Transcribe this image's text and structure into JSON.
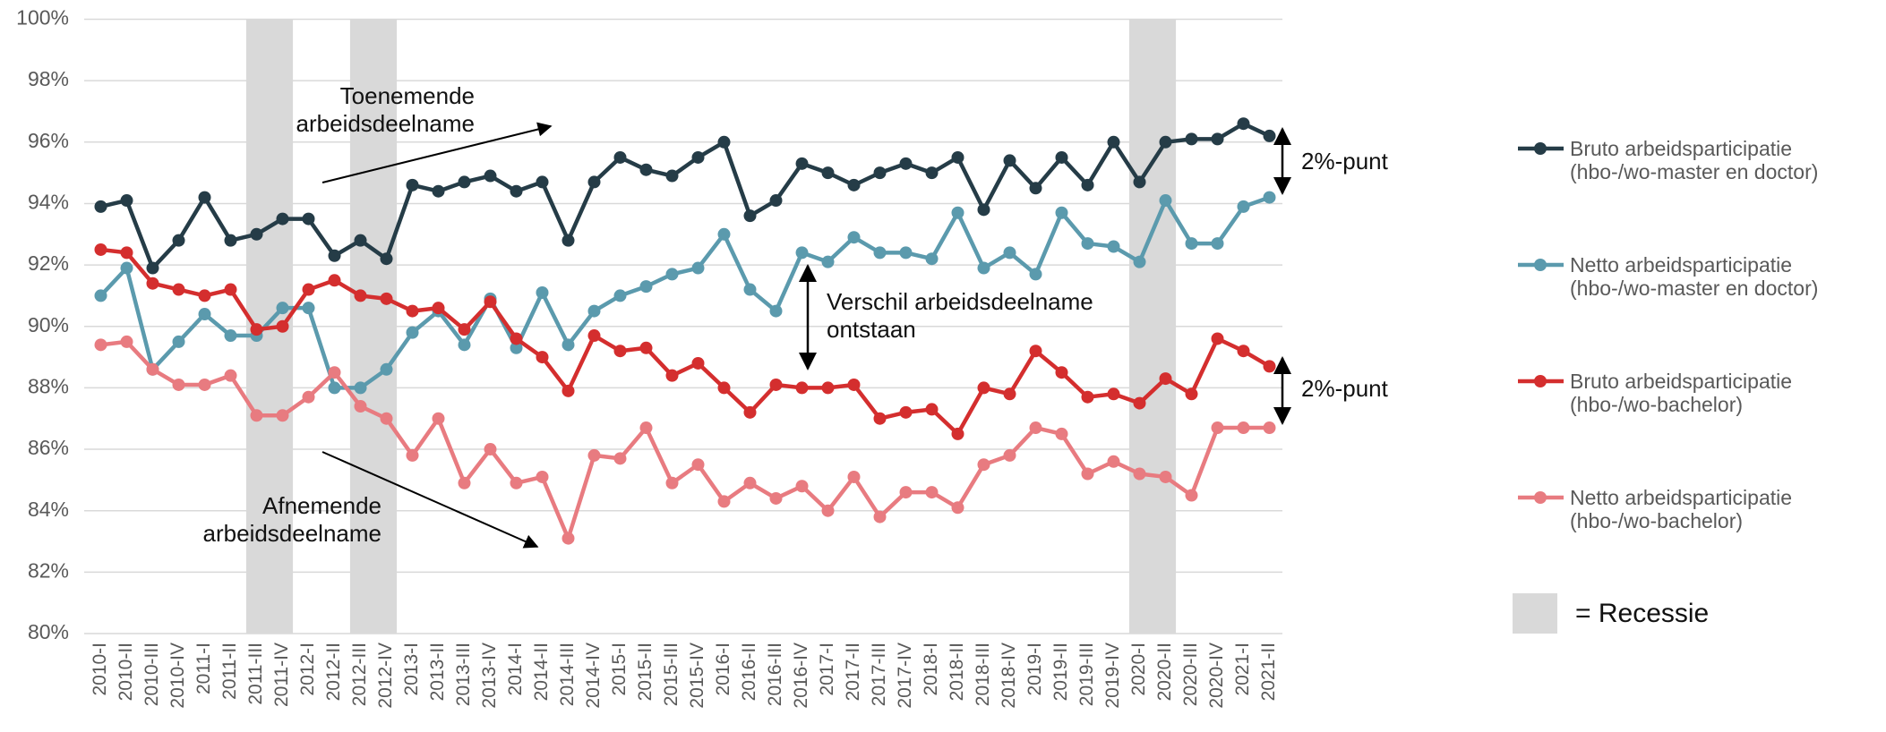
{
  "chart_data": {
    "type": "line",
    "categories": [
      "2010-I",
      "2010-II",
      "2010-III",
      "2010-IV",
      "2011-I",
      "2011-II",
      "2011-III",
      "2011-IV",
      "2012-I",
      "2012-II",
      "2012-III",
      "2012-IV",
      "2013-I",
      "2013-II",
      "2013-III",
      "2013-IV",
      "2014-I",
      "2014-II",
      "2014-III",
      "2014-IV",
      "2015-I",
      "2015-II",
      "2015-III",
      "2015-IV",
      "2016-I",
      "2016-II",
      "2016-III",
      "2016-IV",
      "2017-I",
      "2017-II",
      "2017-III",
      "2017-IV",
      "2018-I",
      "2018-II",
      "2018-III",
      "2018-IV",
      "2019-I",
      "2019-II",
      "2019-III",
      "2019-IV",
      "2020-I",
      "2020-II",
      "2020-III",
      "2020-IV",
      "2021-I",
      "2021-II"
    ],
    "series": [
      {
        "name": "Bruto arbeidsparticipatie\n(hbo-/wo-master en doctor)",
        "color": "#253c47",
        "values": [
          93.9,
          94.1,
          91.9,
          92.8,
          94.2,
          92.8,
          93.0,
          93.5,
          93.5,
          92.3,
          92.8,
          92.2,
          94.6,
          94.4,
          94.7,
          94.9,
          94.4,
          94.7,
          92.8,
          94.7,
          95.5,
          95.1,
          94.9,
          95.5,
          96.0,
          93.6,
          94.1,
          95.3,
          95.0,
          94.6,
          95.0,
          95.3,
          95.0,
          95.5,
          93.8,
          95.4,
          94.5,
          95.5,
          94.6,
          96.0,
          94.7,
          96.0,
          96.1,
          96.1,
          96.6,
          96.2
        ]
      },
      {
        "name": "Netto arbeidsparticipatie\n(hbo-/wo-master en doctor)",
        "color": "#5b9aad",
        "values": [
          91.0,
          91.9,
          88.6,
          89.5,
          90.4,
          89.7,
          89.7,
          90.6,
          90.6,
          88.0,
          88.0,
          88.6,
          89.8,
          90.5,
          89.4,
          90.9,
          89.3,
          91.1,
          89.4,
          90.5,
          91.0,
          91.3,
          91.7,
          91.9,
          93.0,
          91.2,
          90.5,
          92.4,
          92.1,
          92.9,
          92.4,
          92.4,
          92.2,
          93.7,
          91.9,
          92.4,
          91.7,
          93.7,
          92.7,
          92.6,
          92.1,
          94.1,
          92.7,
          92.7,
          93.9,
          94.2
        ]
      },
      {
        "name": "Bruto arbeidsparticipatie\n(hbo-/wo-bachelor)",
        "color": "#d42e2e",
        "values": [
          92.5,
          92.4,
          91.4,
          91.2,
          91.0,
          91.2,
          89.9,
          90.0,
          91.2,
          91.5,
          91.0,
          90.9,
          90.5,
          90.6,
          89.9,
          90.8,
          89.6,
          89.0,
          87.9,
          89.7,
          89.2,
          89.3,
          88.4,
          88.8,
          88.0,
          87.2,
          88.1,
          88.0,
          88.0,
          88.1,
          87.0,
          87.2,
          87.3,
          86.5,
          88.0,
          87.8,
          89.2,
          88.5,
          87.7,
          87.8,
          87.5,
          88.3,
          87.8,
          89.6,
          89.2,
          88.7
        ]
      },
      {
        "name": "Netto arbeidsparticipatie\n(hbo-/wo-bachelor)",
        "color": "#e87b80",
        "values": [
          89.4,
          89.5,
          88.6,
          88.1,
          88.1,
          88.4,
          87.1,
          87.1,
          87.7,
          88.5,
          87.4,
          87.0,
          85.8,
          87.0,
          84.9,
          86.0,
          84.9,
          85.1,
          83.1,
          85.8,
          85.7,
          86.7,
          84.9,
          85.5,
          84.3,
          84.9,
          84.4,
          84.8,
          84.0,
          85.1,
          83.8,
          84.6,
          84.6,
          84.1,
          85.5,
          85.8,
          86.7,
          86.5,
          85.2,
          85.6,
          85.2,
          85.1,
          84.5,
          86.7,
          86.7,
          86.7
        ]
      }
    ],
    "ylim": [
      80,
      100
    ],
    "yticks": [
      {
        "value": 80,
        "label": "80%"
      },
      {
        "value": 82,
        "label": "82%"
      },
      {
        "value": 84,
        "label": "84%"
      },
      {
        "value": 86,
        "label": "86%"
      },
      {
        "value": 88,
        "label": "88%"
      },
      {
        "value": 90,
        "label": "90%"
      },
      {
        "value": 92,
        "label": "92%"
      },
      {
        "value": 94,
        "label": "94%"
      },
      {
        "value": 96,
        "label": "96%"
      },
      {
        "value": 98,
        "label": "98%"
      },
      {
        "value": 100,
        "label": "100%"
      }
    ],
    "grid": true,
    "legend": "right",
    "recessions": [
      {
        "from": "2011-III",
        "to": "2011-IV"
      },
      {
        "from": "2012-III",
        "to": "2012-IV"
      },
      {
        "from": "2020-I",
        "to": "2020-II"
      }
    ],
    "recession_color": "#d9d9d9",
    "recession_label": "= Recessie",
    "annotations": [
      "Toenemende\narbeidsdeelname",
      "Afnemende\narbeidsdeelname",
      "Verschil arbeidsdeelname\nontstaan",
      "2%-punt",
      "2%-punt"
    ]
  }
}
